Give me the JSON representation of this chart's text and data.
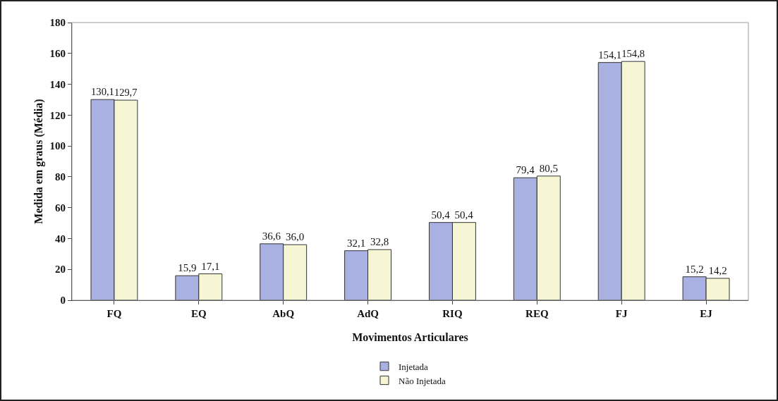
{
  "chart_data": {
    "type": "bar",
    "xlabel": "Movimentos Articulares",
    "ylabel": "Medida em graus (Média)",
    "categories": [
      "FQ",
      "EQ",
      "AbQ",
      "AdQ",
      "RIQ",
      "REQ",
      "FJ",
      "EJ"
    ],
    "series": [
      {
        "name": "Injetada",
        "color": "#a9b1e3",
        "values": [
          130.1,
          15.9,
          36.6,
          32.1,
          50.4,
          79.4,
          154.1,
          15.2
        ],
        "value_labels": [
          "130,1",
          "15,9",
          "36,6",
          "32,1",
          "50,4",
          "79,4",
          "154,1",
          "15,2"
        ]
      },
      {
        "name": "Não Injetada",
        "color": "#f6f6d4",
        "values": [
          129.7,
          17.1,
          36.0,
          32.8,
          50.4,
          80.5,
          154.8,
          14.2
        ],
        "value_labels": [
          "129,7",
          "17,1",
          "36,0",
          "32,8",
          "50,4",
          "80,5",
          "154,8",
          "14,2"
        ]
      }
    ],
    "ylim": [
      0,
      180
    ],
    "yticks": [
      0,
      20,
      40,
      60,
      80,
      100,
      120,
      140,
      160,
      180
    ],
    "grid": false,
    "legend": "bottom"
  }
}
